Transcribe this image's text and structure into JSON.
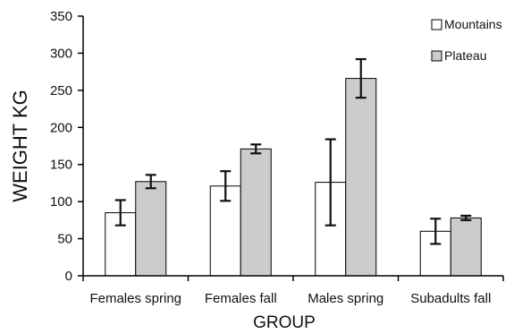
{
  "chart_data": {
    "type": "bar",
    "title": "",
    "xlabel": "GROUP",
    "ylabel": "WEIGHT KG",
    "ylim": [
      0,
      350
    ],
    "yticks": [
      0,
      50,
      100,
      150,
      200,
      250,
      300,
      350
    ],
    "categories": [
      "Females spring",
      "Females fall",
      "Males spring",
      "Subadults fall"
    ],
    "series": [
      {
        "name": "Mountains",
        "color": "#ffffff",
        "values": [
          85,
          121,
          126,
          60
        ],
        "error": [
          17,
          20,
          58,
          17
        ]
      },
      {
        "name": "Plateau",
        "color": "#cccccc",
        "values": [
          127,
          171,
          266,
          78
        ],
        "error": [
          9,
          6,
          26,
          3
        ]
      }
    ],
    "grid": false,
    "legend_position": "top-right",
    "error_bars": true
  }
}
